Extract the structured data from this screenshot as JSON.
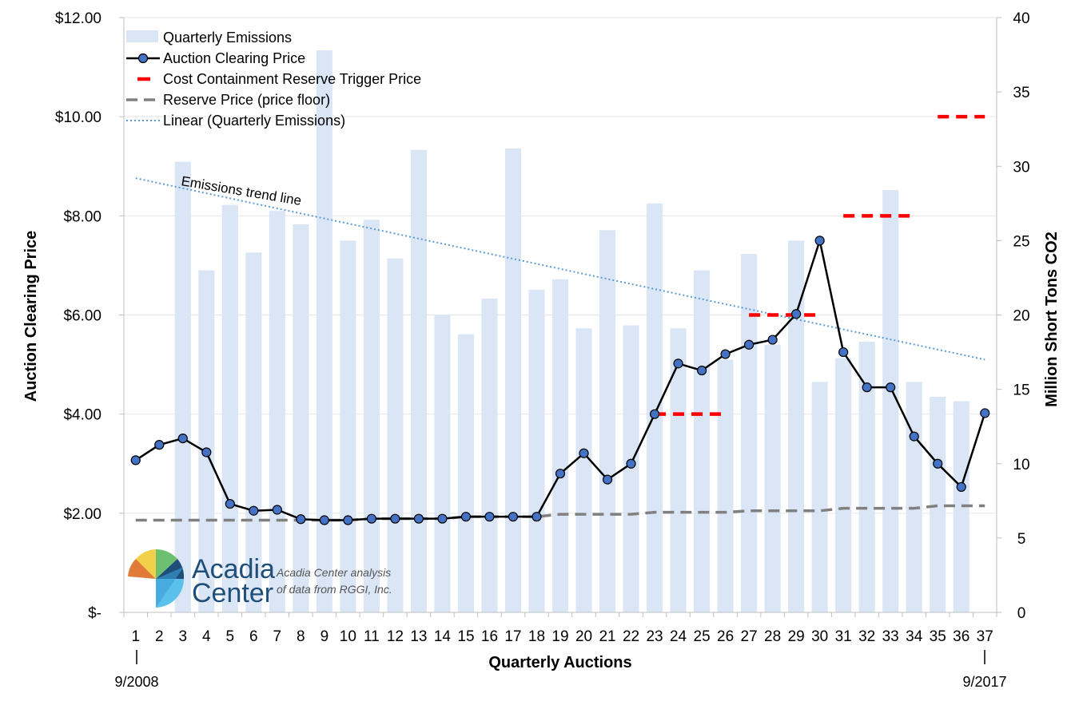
{
  "chart_data": {
    "type": "bar+line",
    "categories": [
      "1",
      "2",
      "3",
      "4",
      "5",
      "6",
      "7",
      "8",
      "9",
      "10",
      "11",
      "12",
      "13",
      "14",
      "15",
      "16",
      "17",
      "18",
      "19",
      "20",
      "21",
      "22",
      "23",
      "24",
      "25",
      "26",
      "27",
      "28",
      "29",
      "30",
      "31",
      "32",
      "33",
      "34",
      "35",
      "36",
      "37"
    ],
    "x_label": "Quarterly Auctions",
    "y_left_label": "Auction Clearing Price",
    "y_right_label": "Million Short Tons CO2",
    "y_left_ticks": [
      "$-",
      "$2.00",
      "$4.00",
      "$6.00",
      "$8.00",
      "$10.00",
      "$12.00"
    ],
    "y_left_range": [
      0,
      12
    ],
    "y_right_ticks": [
      "0",
      "5",
      "10",
      "15",
      "20",
      "25",
      "30",
      "35",
      "40"
    ],
    "y_right_range": [
      0,
      40
    ],
    "start_date": "9/2008",
    "end_date": "9/2017",
    "annotation": "Emissions trend line",
    "series": [
      {
        "name": "Quarterly Emissions",
        "type": "bar",
        "axis": "right",
        "color": "#dae6f5",
        "values": [
          null,
          null,
          30.3,
          23,
          27.4,
          24.2,
          27,
          26.1,
          37.8,
          25,
          26.4,
          23.8,
          31.1,
          20,
          18.7,
          21.1,
          31.2,
          21.7,
          22.4,
          19.1,
          25.7,
          19.3,
          27.5,
          19.1,
          23,
          17,
          24.1,
          18,
          25,
          15.5,
          17.1,
          18.2,
          28.4,
          15.5,
          14.5,
          14.2,
          null
        ]
      },
      {
        "name": "Auction Clearing Price",
        "type": "line",
        "axis": "left",
        "color": "#000000",
        "marker": "#4472c4",
        "values": [
          3.07,
          3.38,
          3.51,
          3.23,
          2.19,
          2.05,
          2.07,
          1.88,
          1.86,
          1.86,
          1.89,
          1.89,
          1.89,
          1.89,
          1.93,
          1.93,
          1.93,
          1.93,
          2.8,
          3.21,
          2.68,
          3.0,
          4.0,
          5.02,
          4.88,
          5.21,
          5.4,
          5.5,
          6.02,
          7.5,
          5.25,
          4.54,
          4.54,
          3.55,
          3.0,
          2.53,
          4.02
        ]
      },
      {
        "name": "Cost Containment Reserve Trigger Price",
        "type": "step-dash",
        "axis": "left",
        "color": "#ff0000",
        "segments": [
          {
            "from": 23,
            "to": 26,
            "value": 4.0
          },
          {
            "from": 27,
            "to": 30,
            "value": 6.0
          },
          {
            "from": 31,
            "to": 34,
            "value": 8.0
          },
          {
            "from": 35,
            "to": 37,
            "value": 10.0
          }
        ]
      },
      {
        "name": "Reserve Price (price floor)",
        "type": "dash",
        "axis": "left",
        "color": "#808080",
        "values": [
          1.86,
          1.86,
          1.86,
          1.86,
          1.86,
          1.86,
          1.86,
          1.86,
          1.86,
          1.86,
          1.89,
          1.89,
          1.89,
          1.89,
          1.93,
          1.93,
          1.93,
          1.93,
          1.98,
          1.98,
          1.98,
          1.98,
          2.02,
          2.02,
          2.02,
          2.02,
          2.05,
          2.05,
          2.05,
          2.05,
          2.1,
          2.1,
          2.1,
          2.1,
          2.15,
          2.15,
          2.15
        ]
      },
      {
        "name": "Linear (Quarterly Emissions)",
        "type": "trend",
        "axis": "right",
        "color": "#5b9bd5",
        "from": 29.2,
        "to": 17.0
      }
    ],
    "legend_position": "top-left"
  },
  "logo": {
    "name": "Acadia Center",
    "line1": "Acadia",
    "line2": "Center"
  },
  "credit": {
    "line1": "Acadia Center analysis",
    "line2": "of data from RGGI, Inc."
  }
}
